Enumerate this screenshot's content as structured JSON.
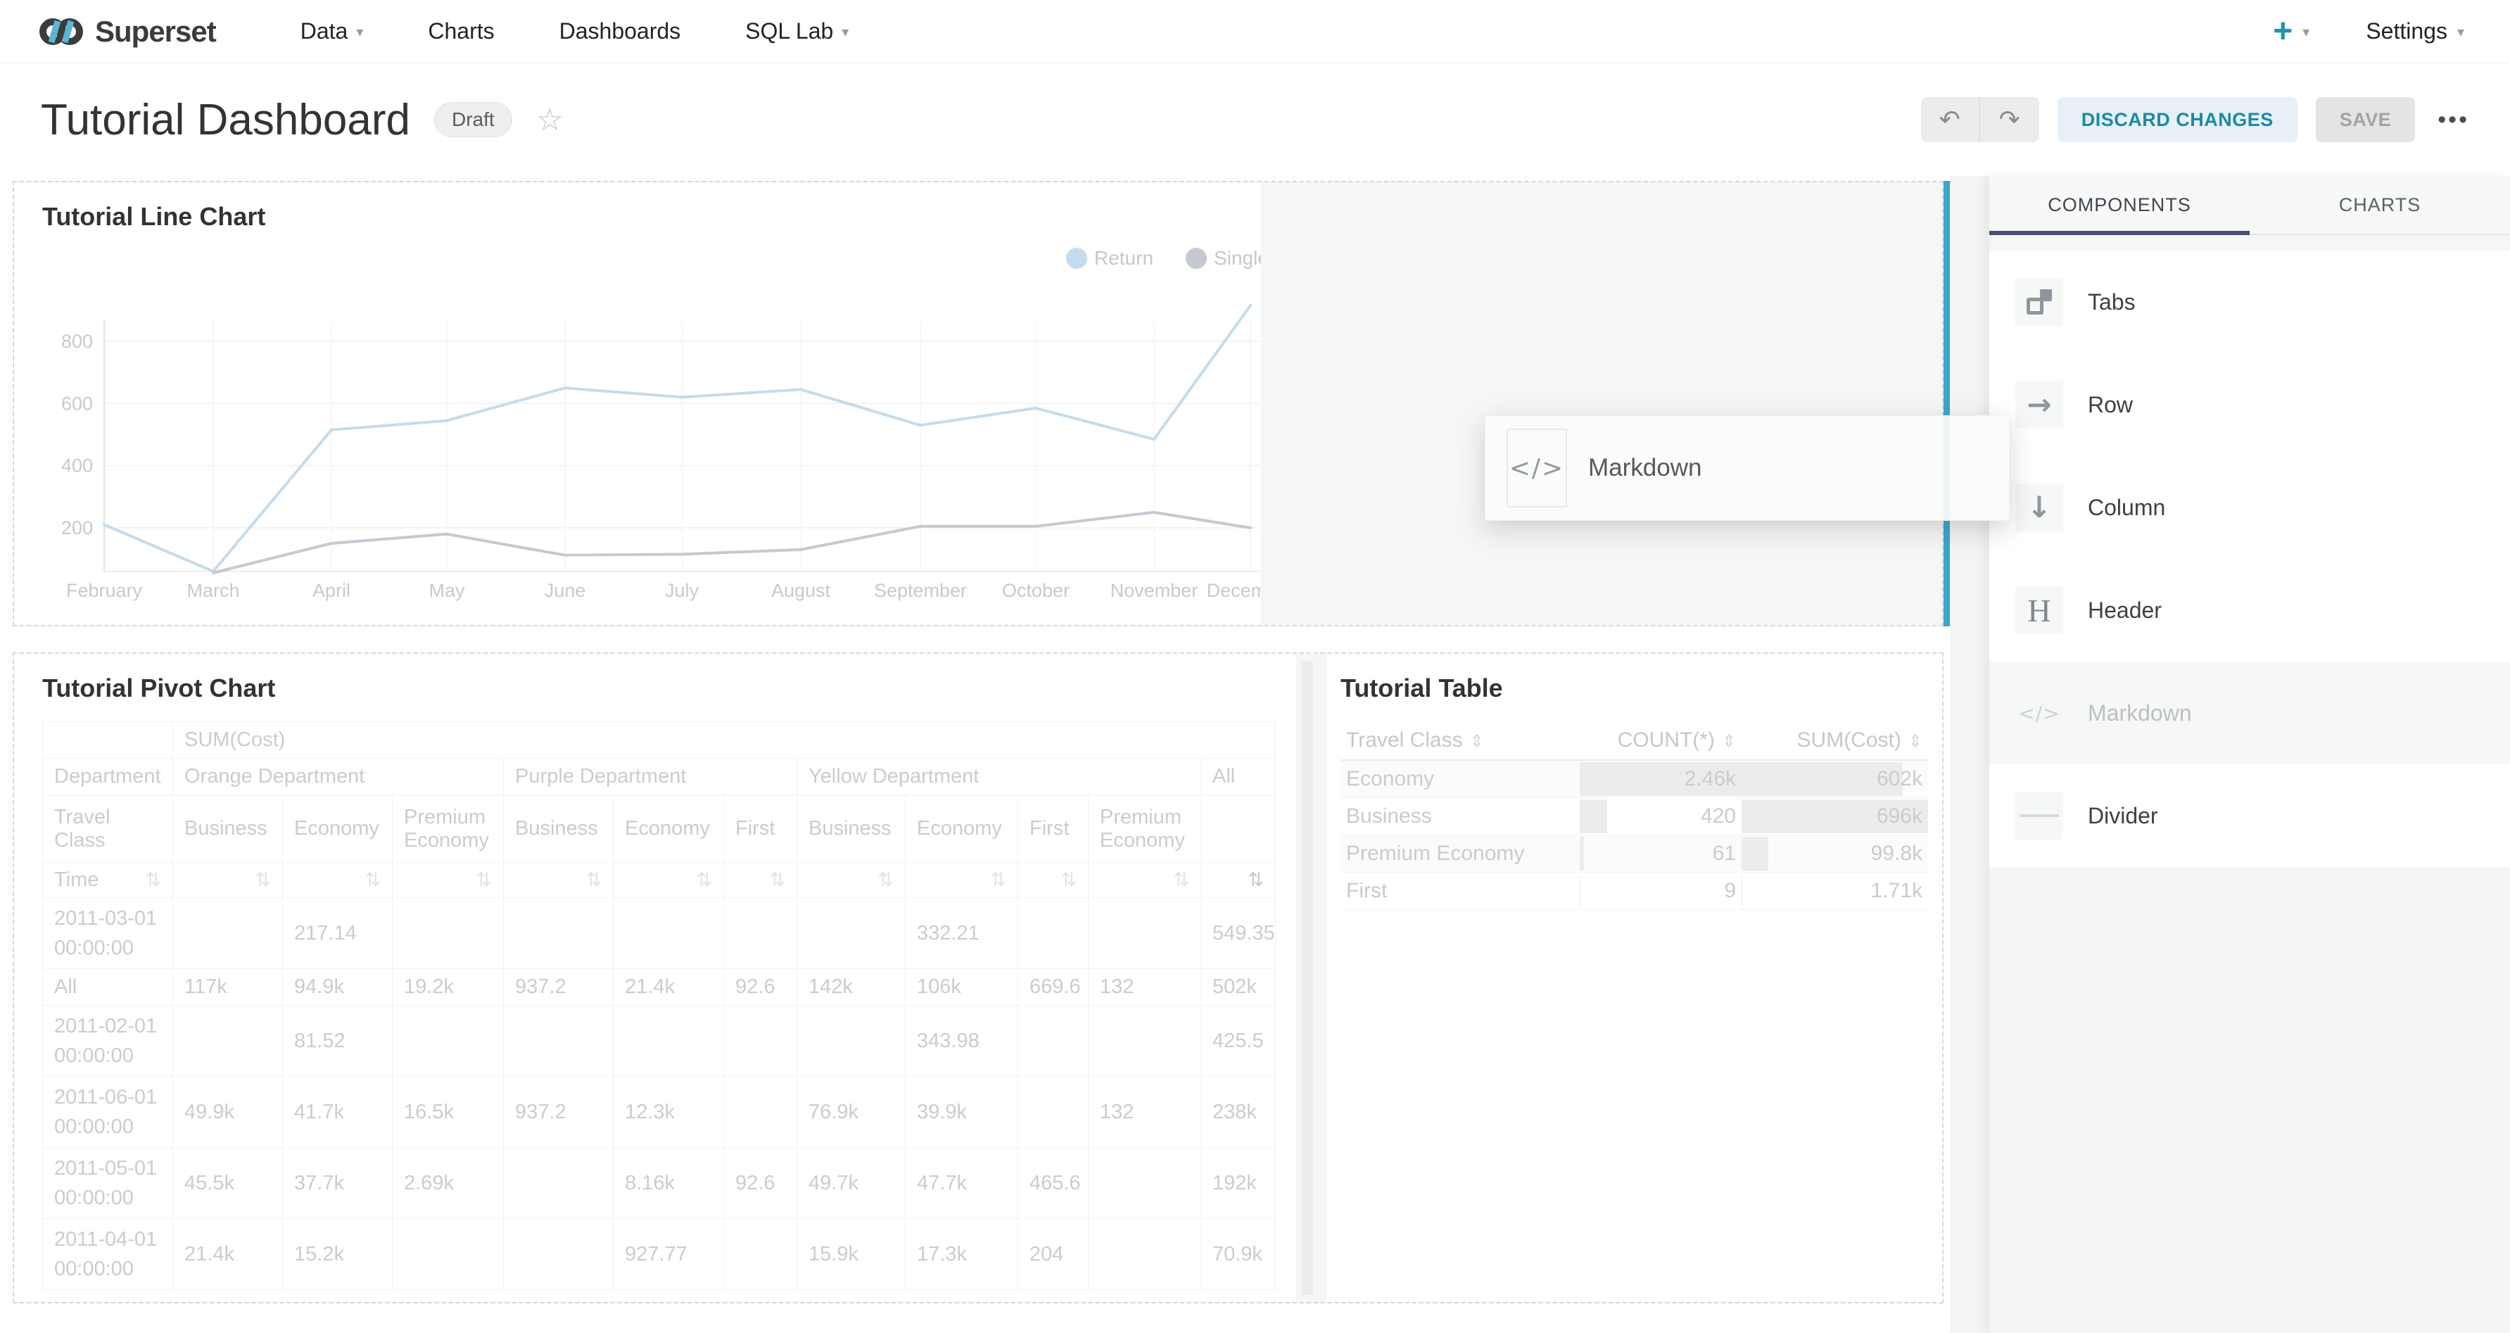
{
  "nav": {
    "brand": "Superset",
    "items": [
      {
        "label": "Data",
        "caret": true
      },
      {
        "label": "Charts",
        "caret": false
      },
      {
        "label": "Dashboards",
        "caret": false
      },
      {
        "label": "SQL Lab",
        "caret": true
      }
    ],
    "plus_label": "+",
    "settings_label": "Settings"
  },
  "header": {
    "title": "Tutorial Dashboard",
    "status_badge": "Draft",
    "discard_label": "DISCARD CHANGES",
    "save_label": "SAVE"
  },
  "icons": {
    "undo": "↶",
    "redo": "↷",
    "star": "☆",
    "caret": "▾",
    "more": "•••",
    "sort_both": "⇅",
    "sort_updown": "⇕"
  },
  "colors": {
    "accent_teal": "#20a7c9",
    "drop_indicator": "#3ba6c7",
    "tab_underline": "#484d72",
    "discard_text": "#1d89a6"
  },
  "panel": {
    "tabs": [
      {
        "label": "COMPONENTS",
        "active": true
      },
      {
        "label": "CHARTS",
        "active": false
      }
    ],
    "components": [
      {
        "label": "Tabs",
        "icon": "tabs-icon",
        "state": "normal"
      },
      {
        "label": "Row",
        "icon": "row-icon",
        "state": "normal"
      },
      {
        "label": "Column",
        "icon": "column-icon",
        "state": "normal"
      },
      {
        "label": "Header",
        "icon": "header-icon",
        "state": "normal"
      },
      {
        "label": "Markdown",
        "icon": "markdown-icon",
        "state": "dragging"
      },
      {
        "label": "Divider",
        "icon": "divider-icon",
        "state": "normal"
      }
    ]
  },
  "drag_overlay": {
    "label": "Markdown",
    "icon": "markdown-icon"
  },
  "chart_data": [
    {
      "type": "line",
      "title": "Tutorial Line Chart",
      "x": [
        "February",
        "March",
        "April",
        "May",
        "June",
        "July",
        "August",
        "September",
        "October",
        "November",
        "December"
      ],
      "ylim": [
        0,
        1000
      ],
      "yticks": [
        200,
        400,
        600,
        800
      ],
      "grid": true,
      "legend_position": "top-right",
      "series": [
        {
          "name": "Return",
          "color": "#c4dcec",
          "values": [
            210,
            60,
            515,
            545,
            650,
            620,
            645,
            530,
            585,
            485,
            915
          ]
        },
        {
          "name": "Single",
          "color": "#c6c8d2",
          "values": [
            null,
            55,
            150,
            180,
            112,
            115,
            130,
            205,
            205,
            250,
            200
          ]
        }
      ]
    },
    {
      "type": "table",
      "title": "Tutorial Pivot Chart",
      "metric_header": "SUM(Cost)",
      "department_row": {
        "label": "Department",
        "groups": [
          {
            "label": "Orange Department",
            "span": 3
          },
          {
            "label": "Purple Department",
            "span": 3
          },
          {
            "label": "Yellow Department",
            "span": 4
          },
          {
            "label": "All",
            "span": 1
          }
        ]
      },
      "class_row": {
        "label": "Travel Class",
        "cols": [
          "Business",
          "Economy",
          "Premium Economy",
          "Business",
          "Economy",
          "First",
          "Business",
          "Economy",
          "First",
          "Premium Economy",
          ""
        ]
      },
      "time_row_label": "Time",
      "rows": [
        {
          "time": "2011-03-01 00:00:00",
          "values": [
            "",
            "217.14",
            "",
            "",
            "",
            "",
            "",
            "332.21",
            "",
            "",
            "549.35"
          ]
        },
        {
          "time": "All",
          "values": [
            "117k",
            "94.9k",
            "19.2k",
            "937.2",
            "21.4k",
            "92.6",
            "142k",
            "106k",
            "669.6",
            "132",
            "502k"
          ]
        },
        {
          "time": "2011-02-01 00:00:00",
          "values": [
            "",
            "81.52",
            "",
            "",
            "",
            "",
            "",
            "343.98",
            "",
            "",
            "425.5"
          ]
        },
        {
          "time": "2011-06-01 00:00:00",
          "values": [
            "49.9k",
            "41.7k",
            "16.5k",
            "937.2",
            "12.3k",
            "",
            "76.9k",
            "39.9k",
            "",
            "132",
            "238k"
          ]
        },
        {
          "time": "2011-05-01 00:00:00",
          "values": [
            "45.5k",
            "37.7k",
            "2.69k",
            "",
            "8.16k",
            "92.6",
            "49.7k",
            "47.7k",
            "465.6",
            "",
            "192k"
          ]
        },
        {
          "time": "2011-04-01 00:00:00",
          "values": [
            "21.4k",
            "15.2k",
            "",
            "",
            "927.77",
            "",
            "15.9k",
            "17.3k",
            "204",
            "",
            "70.9k"
          ]
        }
      ]
    },
    {
      "type": "table",
      "title": "Tutorial Table",
      "columns": [
        "Travel Class",
        "COUNT(*)",
        "SUM(Cost)"
      ],
      "rows": [
        {
          "name": "Economy",
          "count_display": "2.46k",
          "count": 2460,
          "sum_display": "602k",
          "sum": 602000
        },
        {
          "name": "Business",
          "count_display": "420",
          "count": 420,
          "sum_display": "696k",
          "sum": 696000
        },
        {
          "name": "Premium Economy",
          "count_display": "61",
          "count": 61,
          "sum_display": "99.8k",
          "sum": 99800
        },
        {
          "name": "First",
          "count_display": "9",
          "count": 9,
          "sum_display": "1.71k",
          "sum": 1710
        }
      ]
    }
  ]
}
